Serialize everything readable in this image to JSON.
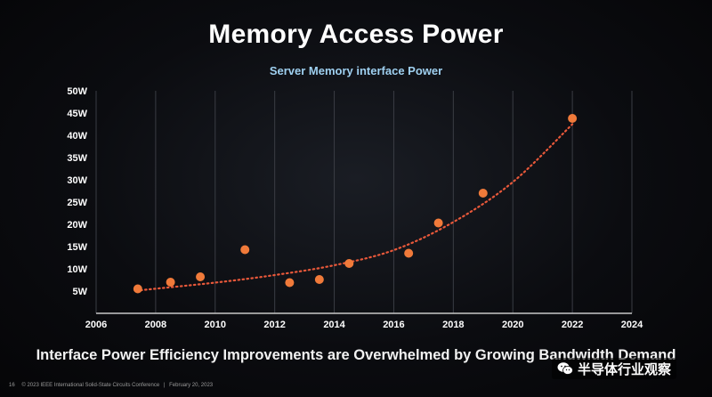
{
  "slide": {
    "title": "Memory Access Power",
    "headline": "Interface Power Efficiency Improvements are Overwhelmed by Growing Bandwidth Demand",
    "page_number": "16",
    "footer": "© 2023 IEEE International Solid-State Circuits Conference",
    "footer_date": "February 20, 2023",
    "watermark": "半导体行业观察",
    "watermark_icon": "wechat-icon"
  },
  "chart_data": {
    "type": "scatter",
    "title": "Server Memory interface Power",
    "xlabel": "",
    "ylabel": "",
    "xlim": [
      2006,
      2024
    ],
    "ylim": [
      0,
      50
    ],
    "x_ticks": [
      2006,
      2008,
      2010,
      2012,
      2014,
      2016,
      2018,
      2020,
      2022,
      2024
    ],
    "y_ticks": [
      5,
      10,
      15,
      20,
      25,
      30,
      35,
      40,
      45,
      50
    ],
    "y_unit": "W",
    "grid": "vertical",
    "marker_color": "#f07a3a",
    "trend_color": "#e8583a",
    "series": [
      {
        "points": [
          {
            "x": 2007.4,
            "y": 5.5
          },
          {
            "x": 2008.5,
            "y": 7.0
          },
          {
            "x": 2009.5,
            "y": 8.2
          },
          {
            "x": 2011.0,
            "y": 14.3
          },
          {
            "x": 2012.5,
            "y": 6.9
          },
          {
            "x": 2013.5,
            "y": 7.6
          },
          {
            "x": 2014.5,
            "y": 11.2
          },
          {
            "x": 2016.5,
            "y": 13.5
          },
          {
            "x": 2017.5,
            "y": 20.3
          },
          {
            "x": 2019.0,
            "y": 27.0
          },
          {
            "x": 2022.0,
            "y": 43.8
          }
        ]
      }
    ],
    "trendline": {
      "style": "dotted",
      "points": [
        {
          "x": 2007.5,
          "y": 5.2
        },
        {
          "x": 2010.0,
          "y": 6.9
        },
        {
          "x": 2012.0,
          "y": 8.6
        },
        {
          "x": 2014.0,
          "y": 10.8
        },
        {
          "x": 2016.0,
          "y": 14.2
        },
        {
          "x": 2018.0,
          "y": 20.5
        },
        {
          "x": 2020.0,
          "y": 29.5
        },
        {
          "x": 2022.0,
          "y": 42.5
        }
      ]
    }
  }
}
